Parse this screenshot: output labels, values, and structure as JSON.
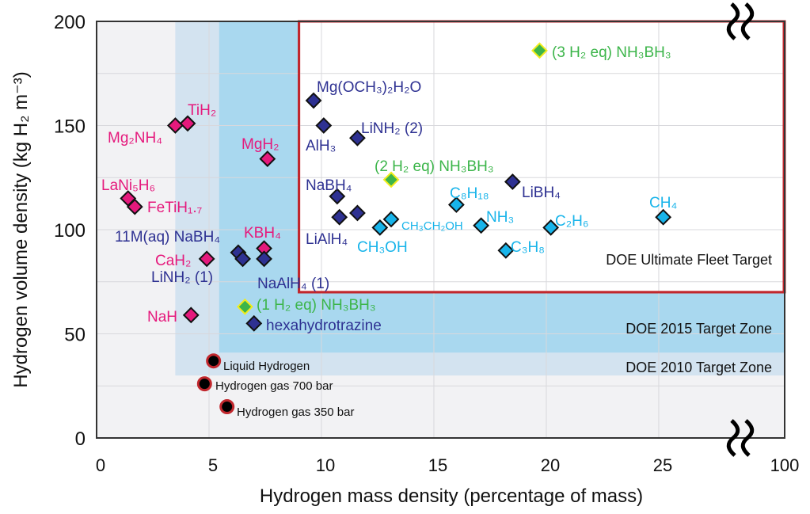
{
  "chart_data": {
    "type": "scatter",
    "title": "",
    "xlabel": "Hydrogen mass density (percentage of mass)",
    "ylabel": "Hydrogen volume density (kg H₂ m⁻³)",
    "xlim": [
      0,
      30.6
    ],
    "ylim": [
      0,
      200
    ],
    "x_ticks": [
      "0",
      "5",
      "10",
      "15",
      "20",
      "25"
    ],
    "x_break_tick": "100",
    "y_ticks": [
      "0",
      "50",
      "100",
      "150",
      "200"
    ],
    "grid": true,
    "axis_break": "between 25 and 100 on x",
    "colors": {
      "metal_hydride": "#e5197c",
      "complex_hydride": "#2e3192",
      "hydrocarbon": "#18b4ea",
      "ammonia_borane": "#3cb54a",
      "ammonia_borane_edge": "#f2ec1a",
      "hydrogen": "#000000",
      "hydrogen_edge": "#c1272d",
      "zone_2010": "#d3e3f0",
      "zone_2015": "#a9d8ef",
      "ultimate_edge": "#c1272d",
      "plot_bg": "#f2f2f4"
    },
    "zones": [
      {
        "label": "DOE 2010 Target Zone",
        "x_min": 3.5,
        "y_min": 30
      },
      {
        "label": "DOE 2015 Target Zone",
        "x_min": 5.45,
        "y_min": 41
      },
      {
        "label": "DOE Ultimate Fleet Target",
        "x_min": 9.0,
        "y_min": 70
      }
    ],
    "points": [
      {
        "label": "Mg(OCH₃)₂H₂O",
        "x": 9.65,
        "y": 162,
        "group": "complex_hydride"
      },
      {
        "label": "AlH₃",
        "x": 10.1,
        "y": 150,
        "group": "complex_hydride"
      },
      {
        "label": "LiNH₂ (2)",
        "x": 11.6,
        "y": 144,
        "group": "complex_hydride"
      },
      {
        "label": "NaBH₄",
        "x": 10.7,
        "y": 116,
        "group": "complex_hydride"
      },
      {
        "label": "LiAlH₄",
        "x": 10.8,
        "y": 106,
        "group": "complex_hydride"
      },
      {
        "label": "",
        "x": 11.6,
        "y": 108,
        "group": "complex_hydride"
      },
      {
        "label": "(2 H₂ eq) NH₃BH₃",
        "x": 13.1,
        "y": 124,
        "group": "ammonia_borane"
      },
      {
        "label": "LiBH₄",
        "x": 18.5,
        "y": 123,
        "group": "complex_hydride"
      },
      {
        "label": "C₈H₁₈",
        "x": 16.0,
        "y": 112,
        "group": "hydrocarbon"
      },
      {
        "label": "CH₃OH",
        "x": 12.6,
        "y": 101,
        "group": "hydrocarbon"
      },
      {
        "label": "CH₃CH₂OH",
        "x": 13.1,
        "y": 105,
        "group": "hydrocarbon"
      },
      {
        "label": "NH₃",
        "x": 17.1,
        "y": 102,
        "group": "hydrocarbon"
      },
      {
        "label": "C₃H₈",
        "x": 18.2,
        "y": 90,
        "group": "hydrocarbon"
      },
      {
        "label": "C₂H₆",
        "x": 20.2,
        "y": 101,
        "group": "hydrocarbon"
      },
      {
        "label": "CH₄",
        "x": 25.2,
        "y": 106,
        "group": "hydrocarbon"
      },
      {
        "label": "(3 H₂ eq) NH₃BH₃",
        "x": 19.7,
        "y": 186,
        "group": "ammonia_borane"
      },
      {
        "label": "TiH₂",
        "x": 4.05,
        "y": 151,
        "group": "metal_hydride"
      },
      {
        "label": "Mg₂NH₄",
        "x": 3.5,
        "y": 150,
        "group": "metal_hydride"
      },
      {
        "label": "MgH₂",
        "x": 7.6,
        "y": 134,
        "group": "metal_hydride"
      },
      {
        "label": "LaNi₅H₆",
        "x": 1.4,
        "y": 115,
        "group": "metal_hydride"
      },
      {
        "label": "FeTiH₁.₇",
        "x": 1.7,
        "y": 111,
        "group": "metal_hydride"
      },
      {
        "label": "CaH₂",
        "x": 4.9,
        "y": 86,
        "group": "metal_hydride"
      },
      {
        "label": "11M(aq) NaBH₄",
        "x": 6.3,
        "y": 89,
        "group": "complex_hydride"
      },
      {
        "label": "LiNH₂ (1)",
        "x": 6.5,
        "y": 86,
        "group": "complex_hydride"
      },
      {
        "label": "KBH₄",
        "x": 7.45,
        "y": 91,
        "group": "metal_hydride"
      },
      {
        "label": "NaAlH₄ (1)",
        "x": 7.45,
        "y": 86,
        "group": "complex_hydride"
      },
      {
        "label": "NaH",
        "x": 4.2,
        "y": 59,
        "group": "metal_hydride"
      },
      {
        "label": "(1 H₂ eq) NH₃BH₃",
        "x": 6.6,
        "y": 63,
        "group": "ammonia_borane"
      },
      {
        "label": "hexahydrotrazine",
        "x": 7.0,
        "y": 55,
        "group": "complex_hydride"
      },
      {
        "label": "Liquid Hydrogen",
        "x": 5.2,
        "y": 37,
        "group": "hydrogen"
      },
      {
        "label": "Hydrogen gas 700 bar",
        "x": 4.8,
        "y": 26,
        "group": "hydrogen"
      },
      {
        "label": "Hydrogen gas 350 bar",
        "x": 5.8,
        "y": 15,
        "group": "hydrogen"
      }
    ]
  }
}
